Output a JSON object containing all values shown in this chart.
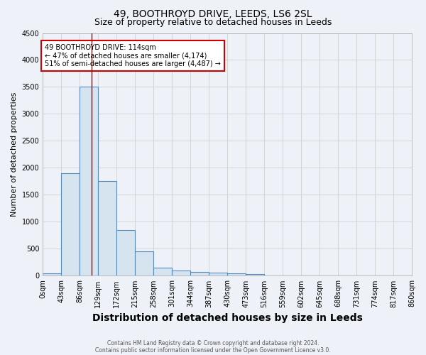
{
  "title1": "49, BOOTHROYD DRIVE, LEEDS, LS6 2SL",
  "title2": "Size of property relative to detached houses in Leeds",
  "xlabel": "Distribution of detached houses by size in Leeds",
  "ylabel": "Number of detached properties",
  "bin_edges": [
    0,
    43,
    86,
    129,
    172,
    215,
    258,
    301,
    344,
    387,
    430,
    473,
    516,
    559,
    602,
    645,
    688,
    731,
    774,
    817,
    860
  ],
  "bar_heights": [
    50,
    1900,
    3500,
    1750,
    850,
    450,
    150,
    100,
    75,
    60,
    40,
    30,
    5,
    3,
    2,
    1,
    1,
    1,
    0,
    0
  ],
  "bar_facecolor": "#d6e4f0",
  "bar_edgecolor": "#5588bb",
  "ylim": [
    0,
    4500
  ],
  "yticks": [
    0,
    500,
    1000,
    1500,
    2000,
    2500,
    3000,
    3500,
    4000,
    4500
  ],
  "property_size": 114,
  "vline_color": "#aa0000",
  "annotation_text": "49 BOOTHROYD DRIVE: 114sqm\n← 47% of detached houses are smaller (4,174)\n51% of semi-detached houses are larger (4,487) →",
  "annotation_box_color": "#ffffff",
  "annotation_box_edgecolor": "#cc0000",
  "footer1": "Contains HM Land Registry data © Crown copyright and database right 2024.",
  "footer2": "Contains public sector information licensed under the Open Government Licence v3.0.",
  "background_color": "#eef2f8",
  "plot_bg_color": "#eef2f8",
  "grid_color": "#cccccc",
  "title1_fontsize": 10,
  "title2_fontsize": 9,
  "xlabel_fontsize": 10,
  "ylabel_fontsize": 8,
  "tick_fontsize": 7
}
